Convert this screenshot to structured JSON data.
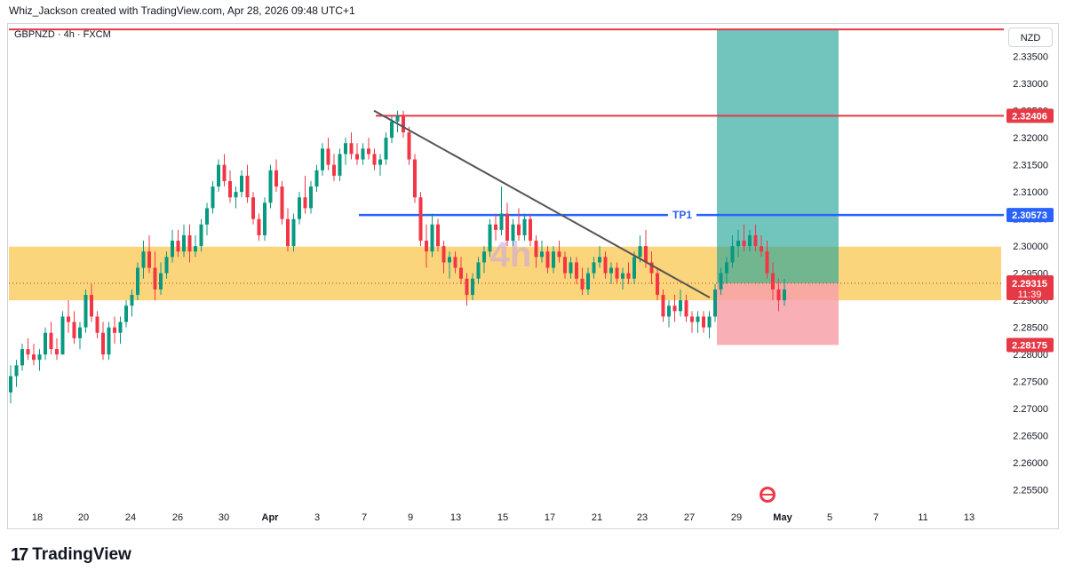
{
  "header": {
    "title": "Whiz_Jackson created with TradingView.com, Apr 28, 2026 09:48 UTC+1"
  },
  "symbol_label": "GBPNZD · 4h · FXCM",
  "currency_button": "NZD",
  "watermark": "4h",
  "footer": {
    "brand": "TradingView"
  },
  "colors": {
    "up": "#089981",
    "down": "#f23645",
    "zone": "#f9c74f",
    "target": "#26a69a",
    "stop": "#f7a1a8",
    "tp_line": "#2962ff",
    "resistance": "#e53946",
    "trendline": "#555555"
  },
  "chart_data": {
    "type": "candlestick",
    "symbol": "GBPNZD",
    "timeframe": "4h",
    "ylim": [
      2.252,
      2.341
    ],
    "y_ticks": [
      "2.33500",
      "2.33000",
      "2.32500",
      "2.32000",
      "2.31500",
      "2.31000",
      "2.30500",
      "2.30000",
      "2.29500",
      "2.29000",
      "2.28500",
      "2.28000",
      "2.27500",
      "2.27000",
      "2.26500",
      "2.26000",
      "2.25500"
    ],
    "x_ticks": [
      "18",
      "20",
      "24",
      "26",
      "30",
      "Apr",
      "3",
      "7",
      "9",
      "13",
      "15",
      "17",
      "21",
      "23",
      "27",
      "29",
      "May",
      "5",
      "7",
      "11",
      "13"
    ],
    "price_labels": [
      {
        "text": "2.32406",
        "value": 2.32406,
        "kind": "resistance"
      },
      {
        "text": "2.30573",
        "value": 2.30573,
        "kind": "tp"
      },
      {
        "text": "2.29315",
        "sub": "11:39",
        "value": 2.29315,
        "kind": "current"
      },
      {
        "text": "2.28175",
        "value": 2.28175,
        "kind": "stop"
      }
    ],
    "levels": [
      {
        "name": "top-resistance",
        "value": 2.34
      },
      {
        "name": "resistance",
        "value": 2.32406
      },
      {
        "name": "tp1",
        "value": 2.30573,
        "label": "TP1"
      }
    ],
    "zone": {
      "from": 2.29,
      "to": 2.2999
    },
    "position": {
      "entry": 2.29315,
      "target": 2.34,
      "stop": 2.28175
    },
    "trendline": {
      "from": 2.325,
      "to": 2.2905
    },
    "candles": [
      [
        2.273,
        2.278,
        2.271,
        2.276
      ],
      [
        2.276,
        2.279,
        2.274,
        2.278
      ],
      [
        2.278,
        2.282,
        2.277,
        2.281
      ],
      [
        2.281,
        2.283,
        2.279,
        2.28
      ],
      [
        2.28,
        2.282,
        2.278,
        2.279
      ],
      [
        2.279,
        2.281,
        2.277,
        2.28
      ],
      [
        2.28,
        2.285,
        2.279,
        2.284
      ],
      [
        2.284,
        2.286,
        2.28,
        2.281
      ],
      [
        2.281,
        2.283,
        2.279,
        2.28
      ],
      [
        2.28,
        2.288,
        2.28,
        2.287
      ],
      [
        2.287,
        2.29,
        2.284,
        2.286
      ],
      [
        2.286,
        2.288,
        2.282,
        2.283
      ],
      [
        2.283,
        2.286,
        2.281,
        2.285
      ],
      [
        2.285,
        2.292,
        2.284,
        2.291
      ],
      [
        2.291,
        2.293,
        2.286,
        2.287
      ],
      [
        2.287,
        2.288,
        2.283,
        2.284
      ],
      [
        2.284,
        2.286,
        2.279,
        2.28
      ],
      [
        2.28,
        2.286,
        2.279,
        2.285
      ],
      [
        2.285,
        2.287,
        2.282,
        2.284
      ],
      [
        2.284,
        2.287,
        2.282,
        2.286
      ],
      [
        2.286,
        2.29,
        2.285,
        2.289
      ],
      [
        2.289,
        2.292,
        2.287,
        2.291
      ],
      [
        2.291,
        2.297,
        2.29,
        2.296
      ],
      [
        2.296,
        2.301,
        2.294,
        2.299
      ],
      [
        2.299,
        2.302,
        2.295,
        2.296
      ],
      [
        2.296,
        2.299,
        2.29,
        2.292
      ],
      [
        2.292,
        2.297,
        2.291,
        2.295
      ],
      [
        2.295,
        2.299,
        2.294,
        2.298
      ],
      [
        2.298,
        2.303,
        2.297,
        2.301
      ],
      [
        2.301,
        2.303,
        2.298,
        2.299
      ],
      [
        2.299,
        2.304,
        2.298,
        2.302
      ],
      [
        2.302,
        2.304,
        2.297,
        2.299
      ],
      [
        2.299,
        2.302,
        2.298,
        2.3
      ],
      [
        2.3,
        2.305,
        2.299,
        2.304
      ],
      [
        2.304,
        2.308,
        2.302,
        2.307
      ],
      [
        2.307,
        2.312,
        2.306,
        2.311
      ],
      [
        2.311,
        2.316,
        2.31,
        2.315
      ],
      [
        2.315,
        2.317,
        2.311,
        2.312
      ],
      [
        2.312,
        2.314,
        2.308,
        2.309
      ],
      [
        2.309,
        2.311,
        2.307,
        2.31
      ],
      [
        2.31,
        2.314,
        2.309,
        2.313
      ],
      [
        2.313,
        2.315,
        2.308,
        2.309
      ],
      [
        2.309,
        2.31,
        2.304,
        2.305
      ],
      [
        2.305,
        2.306,
        2.301,
        2.302
      ],
      [
        2.302,
        2.309,
        2.301,
        2.308
      ],
      [
        2.308,
        2.315,
        2.307,
        2.314
      ],
      [
        2.314,
        2.316,
        2.31,
        2.311
      ],
      [
        2.311,
        2.312,
        2.304,
        2.305
      ],
      [
        2.305,
        2.307,
        2.299,
        2.3
      ],
      [
        2.3,
        2.306,
        2.299,
        2.305
      ],
      [
        2.305,
        2.31,
        2.304,
        2.309
      ],
      [
        2.309,
        2.313,
        2.306,
        2.307
      ],
      [
        2.307,
        2.312,
        2.306,
        2.311
      ],
      [
        2.311,
        2.315,
        2.31,
        2.314
      ],
      [
        2.314,
        2.319,
        2.313,
        2.318
      ],
      [
        2.318,
        2.32,
        2.314,
        2.315
      ],
      [
        2.315,
        2.317,
        2.312,
        2.313
      ],
      [
        2.313,
        2.318,
        2.312,
        2.317
      ],
      [
        2.317,
        2.32,
        2.315,
        2.319
      ],
      [
        2.319,
        2.321,
        2.316,
        2.317
      ],
      [
        2.317,
        2.319,
        2.315,
        2.316
      ],
      [
        2.316,
        2.319,
        2.315,
        2.318
      ],
      [
        2.318,
        2.32,
        2.316,
        2.317
      ],
      [
        2.317,
        2.318,
        2.314,
        2.315
      ],
      [
        2.315,
        2.317,
        2.313,
        2.316
      ],
      [
        2.316,
        2.321,
        2.315,
        2.32
      ],
      [
        2.32,
        2.324,
        2.319,
        2.323
      ],
      [
        2.323,
        2.325,
        2.321,
        2.324
      ],
      [
        2.324,
        2.325,
        2.32,
        2.321
      ],
      [
        2.321,
        2.322,
        2.315,
        2.316
      ],
      [
        2.316,
        2.317,
        2.308,
        2.309
      ],
      [
        2.309,
        2.31,
        2.3,
        2.301
      ],
      [
        2.301,
        2.304,
        2.296,
        2.299
      ],
      [
        2.299,
        2.306,
        2.298,
        2.304
      ],
      [
        2.304,
        2.305,
        2.299,
        2.3
      ],
      [
        2.3,
        2.301,
        2.295,
        2.297
      ],
      [
        2.297,
        2.299,
        2.294,
        2.298
      ],
      [
        2.298,
        2.299,
        2.295,
        2.296
      ],
      [
        2.296,
        2.298,
        2.293,
        2.294
      ],
      [
        2.294,
        2.295,
        2.289,
        2.291
      ],
      [
        2.291,
        2.295,
        2.29,
        2.294
      ],
      [
        2.294,
        2.298,
        2.293,
        2.297
      ],
      [
        2.297,
        2.3,
        2.295,
        2.299
      ],
      [
        2.299,
        2.305,
        2.298,
        2.304
      ],
      [
        2.304,
        2.306,
        2.301,
        2.303
      ],
      [
        2.303,
        2.311,
        2.302,
        2.306
      ],
      [
        2.306,
        2.308,
        2.3,
        2.301
      ],
      [
        2.301,
        2.305,
        2.3,
        2.304
      ],
      [
        2.304,
        2.307,
        2.301,
        2.302
      ],
      [
        2.302,
        2.306,
        2.301,
        2.305
      ],
      [
        2.305,
        2.306,
        2.3,
        2.301
      ],
      [
        2.301,
        2.302,
        2.296,
        2.298
      ],
      [
        2.298,
        2.301,
        2.297,
        2.299
      ],
      [
        2.299,
        2.3,
        2.295,
        2.296
      ],
      [
        2.296,
        2.3,
        2.295,
        2.299
      ],
      [
        2.299,
        2.301,
        2.297,
        2.298
      ],
      [
        2.298,
        2.299,
        2.294,
        2.295
      ],
      [
        2.295,
        2.298,
        2.294,
        2.297
      ],
      [
        2.297,
        2.298,
        2.293,
        2.294
      ],
      [
        2.294,
        2.296,
        2.291,
        2.292
      ],
      [
        2.292,
        2.296,
        2.291,
        2.295
      ],
      [
        2.295,
        2.298,
        2.294,
        2.297
      ],
      [
        2.297,
        2.3,
        2.296,
        2.298
      ],
      [
        2.298,
        2.299,
        2.294,
        2.295
      ],
      [
        2.295,
        2.297,
        2.293,
        2.296
      ],
      [
        2.296,
        2.297,
        2.293,
        2.294
      ],
      [
        2.294,
        2.296,
        2.292,
        2.295
      ],
      [
        2.295,
        2.297,
        2.293,
        2.294
      ],
      [
        2.294,
        2.299,
        2.293,
        2.298
      ],
      [
        2.298,
        2.302,
        2.297,
        2.3
      ],
      [
        2.3,
        2.303,
        2.296,
        2.297
      ],
      [
        2.297,
        2.299,
        2.293,
        2.295
      ],
      [
        2.295,
        2.296,
        2.29,
        2.291
      ],
      [
        2.291,
        2.292,
        2.286,
        2.287
      ],
      [
        2.287,
        2.29,
        2.285,
        2.289
      ],
      [
        2.289,
        2.291,
        2.286,
        2.288
      ],
      [
        2.288,
        2.292,
        2.287,
        2.29
      ],
      [
        2.29,
        2.291,
        2.286,
        2.287
      ],
      [
        2.287,
        2.288,
        2.284,
        2.286
      ],
      [
        2.286,
        2.288,
        2.284,
        2.287
      ],
      [
        2.287,
        2.288,
        2.284,
        2.285
      ],
      [
        2.285,
        2.288,
        2.283,
        2.287
      ],
      [
        2.287,
        2.293,
        2.286,
        2.292
      ],
      [
        2.292,
        2.296,
        2.291,
        2.295
      ],
      [
        2.295,
        2.298,
        2.293,
        2.297
      ],
      [
        2.297,
        2.302,
        2.296,
        2.3
      ],
      [
        2.3,
        2.303,
        2.298,
        2.301
      ],
      [
        2.301,
        2.304,
        2.299,
        2.3
      ],
      [
        2.3,
        2.303,
        2.299,
        2.302
      ],
      [
        2.302,
        2.304,
        2.299,
        2.3
      ],
      [
        2.3,
        2.302,
        2.298,
        2.299
      ],
      [
        2.299,
        2.301,
        2.294,
        2.295
      ],
      [
        2.295,
        2.297,
        2.29,
        2.292
      ],
      [
        2.292,
        2.294,
        2.288,
        2.29
      ],
      [
        2.29,
        2.294,
        2.289,
        2.292
      ]
    ]
  }
}
